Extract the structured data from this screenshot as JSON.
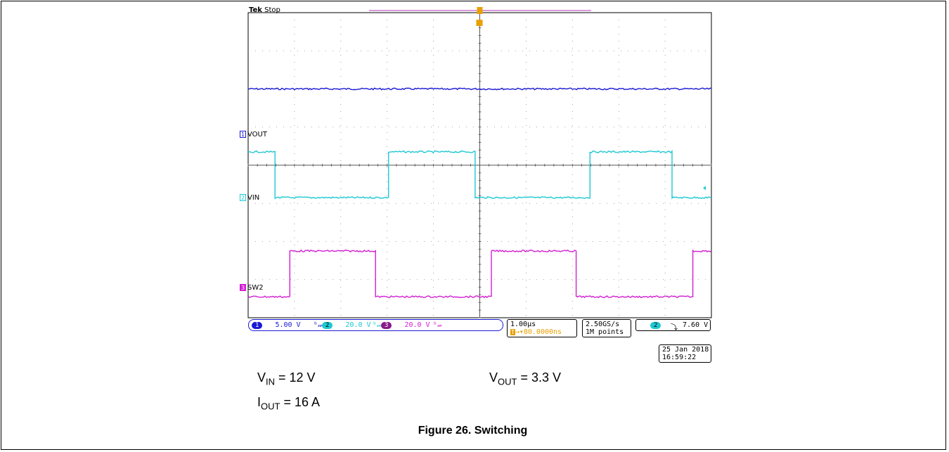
{
  "chart_data": {
    "type": "line",
    "title": "",
    "grid": true,
    "x_unit": "µs",
    "xlim": [
      -5.0,
      5.0
    ],
    "ylim_div": [
      -4,
      4
    ],
    "series": [
      {
        "name": "VOUT",
        "color": "#1a1ad4",
        "x": [
          -5.0,
          5.0
        ],
        "y_div": [
          2.0,
          2.0
        ]
      },
      {
        "name": "VIN",
        "color": "#1ec8d2",
        "x": [
          -5.0,
          -4.42,
          -4.42,
          -1.97,
          -1.97,
          -0.1,
          -0.1,
          2.38,
          2.38,
          4.15,
          4.15,
          5.0
        ],
        "y_div": [
          0.35,
          0.35,
          -0.85,
          -0.85,
          0.35,
          0.35,
          -0.85,
          -0.85,
          0.35,
          0.35,
          -0.85,
          -0.85
        ]
      },
      {
        "name": "SW2",
        "color": "#d21ed2",
        "x": [
          -5.0,
          -4.1,
          -4.1,
          -2.25,
          -2.25,
          0.25,
          0.25,
          2.08,
          2.08,
          4.6,
          4.6,
          5.0
        ],
        "y_div": [
          -3.45,
          -3.45,
          -2.25,
          -2.25,
          -3.45,
          -3.45,
          -2.25,
          -2.25,
          -3.45,
          -3.45,
          -2.25,
          -2.25
        ]
      }
    ]
  },
  "scope": {
    "brand": "Tek",
    "state": "Stop",
    "ch_labels": [
      {
        "num": "1",
        "text": "VOUT",
        "color": "#1a1ad4"
      },
      {
        "num": "2",
        "text": "VIN",
        "color": "#1ec8d2"
      },
      {
        "num": "3",
        "text": "SW2",
        "color": "#d21ed2"
      }
    ],
    "status": {
      "ch1": {
        "num": "1",
        "scale": "5.00 V",
        "color": "#1a1ad4"
      },
      "ch2": {
        "num": "2",
        "scale": "20.0 V",
        "color": "#1ec8d2"
      },
      "ch3": {
        "num": "3",
        "scale": "20.0 V",
        "color": "#d21ed2"
      },
      "bw_symbol": "ᵇ𝓌",
      "timebase": "1.00µs",
      "trig_delay": "80.0000ns",
      "sample_rate": "2.50GS/s",
      "record_length": "1M points",
      "trig_ch": "2",
      "trig_level": "7.60 V",
      "trig_slope": "⤵",
      "date": "25 Jan  2018",
      "time": "16:59:22"
    }
  },
  "caption": {
    "vin_sym": "V",
    "vin_sub": "IN",
    "vin_val": " = 12 V",
    "iout_sym": "I",
    "iout_sub": "OUT",
    "iout_val": " = 16 A",
    "vout_sym": "V",
    "vout_sub": "OUT",
    "vout_val": " = 3.3 V",
    "figure_title": "Figure 26. Switching"
  }
}
